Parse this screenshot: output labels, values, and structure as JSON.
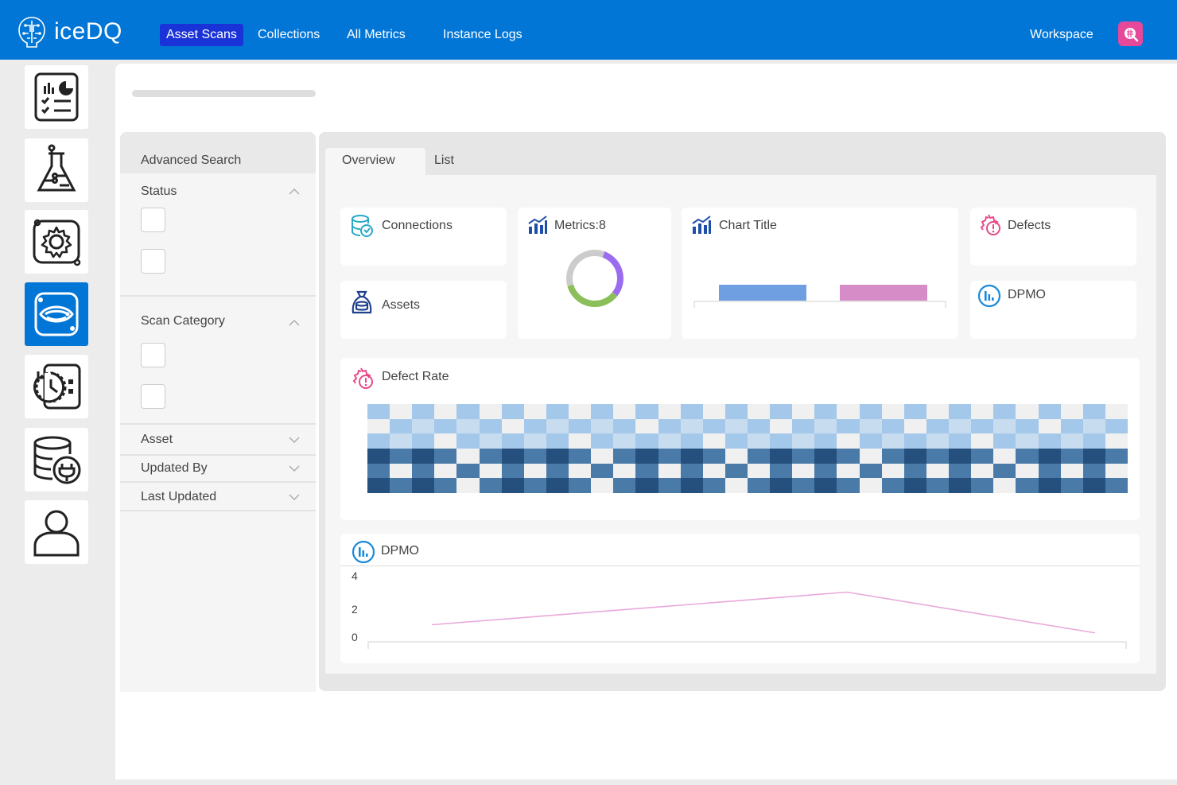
{
  "app": {
    "name": "iceDQ"
  },
  "nav": {
    "items": [
      {
        "label": "Asset Scans",
        "active": true
      },
      {
        "label": "Collections",
        "active": false
      },
      {
        "label": "All Metrics",
        "active": false
      },
      {
        "label": "Instance Logs",
        "active": false
      }
    ],
    "workspace_label": "Workspace"
  },
  "rail": {
    "items": [
      {
        "icon": "report-dashboard-icon",
        "active": false
      },
      {
        "icon": "flask-icon",
        "active": false
      },
      {
        "icon": "gear-icon",
        "active": false
      },
      {
        "icon": "scan-eye-icon",
        "active": true
      },
      {
        "icon": "history-clock-icon",
        "active": false
      },
      {
        "icon": "database-plug-icon",
        "active": false
      },
      {
        "icon": "user-icon",
        "active": false
      }
    ]
  },
  "filters": {
    "title": "Advanced Search",
    "status_label": "Status",
    "scan_category_label": "Scan Category",
    "asset_label": "Asset",
    "updated_by_label": "Updated By",
    "last_updated_label": "Last Updated"
  },
  "tabs": {
    "overview": "Overview",
    "list": "List"
  },
  "cards": {
    "connections": "Connections",
    "assets": "Assets",
    "metrics": "Metrics:8",
    "chart_title": "Chart Title",
    "defects": "Defects",
    "dpmo": "DPMO",
    "defect_rate": "Defect Rate",
    "dpmo_chart": "DPMO"
  },
  "colors": {
    "brand": "#0276d6",
    "nav_active": "#1a33d8",
    "workspace_button": "#e6489a",
    "donut_purple": "#9b6cf0",
    "donut_green": "#8bbf5a",
    "donut_gray": "#cccccc",
    "bar_blue": "#6f9fe0",
    "bar_pink": "#d68cc6",
    "line_pink": "#e9a8dc"
  },
  "chart_data": [
    {
      "type": "pie",
      "values": [
        30,
        35,
        35
      ],
      "colors": [
        "#9b6cf0",
        "#8bbf5a",
        "#cccccc"
      ]
    },
    {
      "type": "bar",
      "categories": [
        "",
        ""
      ],
      "values": [
        1,
        1
      ],
      "colors": [
        "#6f9fe0",
        "#d68cc6"
      ]
    },
    {
      "type": "heatmap",
      "rows": 6,
      "cols": 34,
      "colors": [
        "#f0f0f0",
        "#c8dcf0",
        "#a4c8ea",
        "#4a7ba8",
        "#254f7d"
      ]
    },
    {
      "type": "line",
      "x": [
        0,
        1,
        2
      ],
      "values": [
        1.0,
        3.0,
        0.5
      ],
      "yticks": [
        "4",
        "2",
        "0"
      ],
      "ylim": [
        0,
        4
      ],
      "color": "#e9a8dc"
    }
  ]
}
